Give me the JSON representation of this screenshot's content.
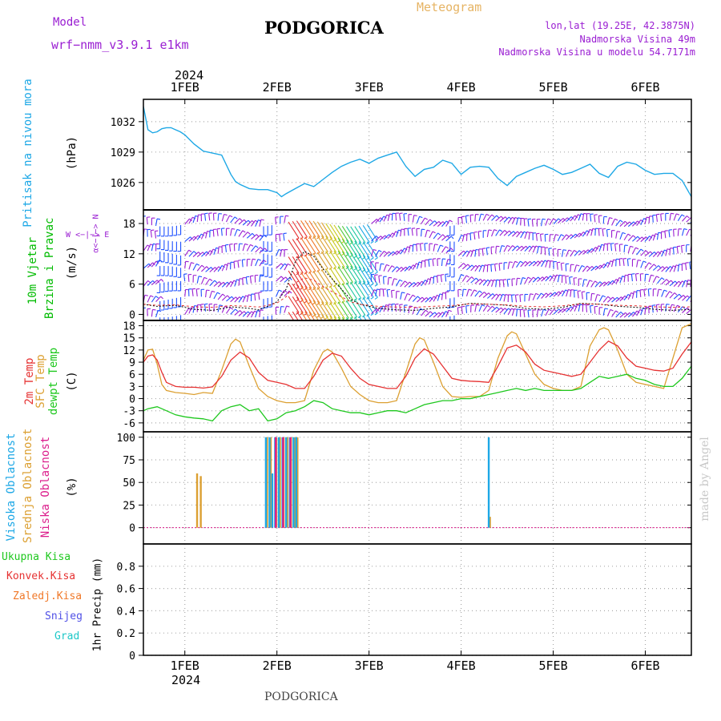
{
  "header": {
    "model_label": "Model",
    "model_value": "wrf−nmm_v3.9.1 e1km",
    "title": "PODGORICA",
    "meteogram_label": "Meteogram",
    "coords": "lon,lat (19.25E, 42.3875N)",
    "elev": "Nadmorska Visina 49m",
    "model_elev": "Nadmorska Visina u modelu 54.7171m",
    "year_top": "2024",
    "year_bottom": "2024",
    "footer": "PODGORICA",
    "watermark": "made by Angel"
  },
  "colors": {
    "pressure": "#1ea8e6",
    "wind_label": "#00bb00",
    "wind_purple": "#9a1ed2",
    "wind_blue": "#1e50ff",
    "temp2m": "#e63232",
    "sfc": "#dca032",
    "dew": "#1ec81e",
    "high": "#1ea8e6",
    "mid": "#dca032",
    "low": "#dc1e8c",
    "precip_total": "#1ec81e",
    "precip_conv": "#e63232",
    "precip_frz": "#f07828",
    "precip_snow": "#5050e6",
    "precip_grad": "#1ec8c8"
  },
  "panels": {
    "pressure": {
      "label": "Pritisak na nivou mora",
      "unit": "(hPa)",
      "ticks": [
        1026,
        1029,
        1032
      ]
    },
    "wind": {
      "label1": "10m Vjetar",
      "label2": "Brzina i Pravac",
      "unit": "(m/s)",
      "ticks": [
        0,
        6,
        12,
        18
      ],
      "compass": {
        "n": "N",
        "s": "S",
        "w": "W",
        "e": "E",
        "arrow": "<−|−>",
        "alpha": "α<−|−>"
      }
    },
    "temp": {
      "label1": "2m Temp",
      "label2": "SFC Temp",
      "label3": "dewpt Temp",
      "unit": "(C)",
      "ticks": [
        -6,
        -3,
        0,
        3,
        6,
        9,
        12,
        15,
        18
      ]
    },
    "cloud": {
      "label1": "Visoka Oblacnost",
      "label2": "Srednja Oblacnost",
      "label3": "Niska Oblacnost",
      "unit": "(%)",
      "ticks": [
        0,
        25,
        50,
        75,
        100
      ]
    },
    "precip": {
      "label1": "Ukupna Kisa",
      "label2": "Konvek.Kisa",
      "label3": "Zaledj.Kisa",
      "label4": "Snijeg",
      "label5": "Grad",
      "unit": "1hr Precip (mm)",
      "ticks": [
        0,
        0.2,
        0.4,
        0.6,
        0.8
      ]
    }
  },
  "chart_data": {
    "type": "line",
    "x_day_labels": [
      "1FEB",
      "2FEB",
      "3FEB",
      "4FEB",
      "5FEB",
      "6FEB"
    ],
    "x_range_days": [
      0.55,
      6.5
    ],
    "pressure_hPa": {
      "x": [
        0.55,
        0.6,
        0.65,
        0.7,
        0.75,
        0.8,
        0.85,
        0.9,
        0.95,
        1.0,
        1.1,
        1.2,
        1.3,
        1.4,
        1.5,
        1.55,
        1.6,
        1.7,
        1.8,
        1.9,
        2.0,
        2.05,
        2.1,
        2.2,
        2.3,
        2.4,
        2.5,
        2.6,
        2.7,
        2.8,
        2.9,
        3.0,
        3.1,
        3.2,
        3.3,
        3.4,
        3.5,
        3.6,
        3.7,
        3.8,
        3.9,
        4.0,
        4.1,
        4.2,
        4.3,
        4.4,
        4.5,
        4.6,
        4.7,
        4.8,
        4.9,
        5.0,
        5.1,
        5.2,
        5.3,
        5.4,
        5.5,
        5.6,
        5.7,
        5.8,
        5.9,
        6.0,
        6.1,
        6.2,
        6.3,
        6.4,
        6.5
      ],
      "y": [
        1033.5,
        1031.2,
        1030.9,
        1031.0,
        1031.3,
        1031.4,
        1031.4,
        1031.2,
        1031.0,
        1030.7,
        1029.8,
        1029.1,
        1028.9,
        1028.7,
        1026.8,
        1026.1,
        1025.8,
        1025.4,
        1025.3,
        1025.3,
        1025.0,
        1024.6,
        1024.9,
        1025.4,
        1025.9,
        1025.6,
        1026.3,
        1027.0,
        1027.6,
        1028.0,
        1028.3,
        1027.9,
        1028.4,
        1028.7,
        1029.0,
        1027.6,
        1026.6,
        1027.3,
        1027.5,
        1028.2,
        1027.9,
        1026.8,
        1027.5,
        1027.6,
        1027.5,
        1026.4,
        1025.7,
        1026.6,
        1027.0,
        1027.4,
        1027.7,
        1027.3,
        1026.8,
        1027.0,
        1027.4,
        1027.8,
        1026.9,
        1026.5,
        1027.6,
        1028.0,
        1027.8,
        1027.2,
        1026.8,
        1026.9,
        1026.9,
        1026.2,
        1024.6
      ]
    },
    "wind_ms": {
      "x": [
        0.55,
        0.7,
        0.9,
        1.1,
        1.3,
        1.5,
        1.7,
        1.8,
        1.9,
        2.0,
        2.1,
        2.2,
        2.3,
        2.4,
        2.5,
        2.6,
        2.7,
        2.8,
        2.9,
        3.0,
        3.1,
        3.3,
        3.5,
        3.7,
        3.9,
        4.1,
        4.3,
        4.5,
        4.7,
        4.9,
        5.1,
        5.3,
        5.5,
        5.7,
        5.9,
        6.1,
        6.3,
        6.5
      ],
      "speed": [
        2.0,
        1.6,
        1.8,
        1.0,
        0.8,
        1.5,
        1.2,
        0.9,
        1.6,
        2.5,
        5.0,
        10.5,
        12.5,
        11.5,
        9.0,
        7.0,
        5.0,
        3.0,
        2.0,
        1.6,
        1.2,
        0.9,
        0.8,
        1.2,
        1.5,
        2.2,
        2.0,
        1.8,
        1.2,
        1.0,
        1.4,
        2.2,
        2.0,
        1.6,
        1.4,
        1.0,
        0.8,
        1.0
      ]
    },
    "temp_2m_C": {
      "x": [
        0.55,
        0.6,
        0.65,
        0.7,
        0.75,
        0.8,
        0.9,
        1.0,
        1.1,
        1.2,
        1.3,
        1.4,
        1.5,
        1.6,
        1.7,
        1.8,
        1.9,
        2.0,
        2.1,
        2.2,
        2.3,
        2.4,
        2.5,
        2.6,
        2.7,
        2.8,
        2.9,
        3.0,
        3.1,
        3.2,
        3.3,
        3.4,
        3.5,
        3.6,
        3.7,
        3.8,
        3.9,
        4.0,
        4.1,
        4.2,
        4.3,
        4.4,
        4.5,
        4.6,
        4.7,
        4.8,
        4.9,
        5.0,
        5.1,
        5.2,
        5.3,
        5.4,
        5.5,
        5.6,
        5.7,
        5.8,
        5.9,
        6.0,
        6.1,
        6.2,
        6.3,
        6.4,
        6.5
      ],
      "y": [
        9.0,
        10.5,
        10.8,
        9.5,
        6.5,
        4.0,
        3.0,
        2.8,
        2.8,
        2.6,
        2.9,
        5.5,
        9.5,
        11.5,
        10.0,
        6.5,
        4.5,
        4.0,
        3.5,
        2.5,
        2.5,
        5.5,
        9.5,
        11.2,
        10.5,
        7.5,
        5.0,
        3.5,
        3.0,
        2.5,
        2.5,
        5.5,
        10.0,
        12.3,
        11.0,
        8.0,
        5.0,
        4.5,
        4.3,
        4.2,
        4.0,
        8.0,
        12.5,
        13.2,
        11.5,
        8.5,
        7.0,
        6.5,
        6.0,
        5.5,
        6.0,
        9.0,
        12.0,
        14.2,
        13.0,
        10.0,
        8.0,
        7.5,
        7.0,
        6.8,
        7.5,
        11.0,
        14.0
      ]
    },
    "temp_sfc_C": {
      "x": [
        0.55,
        0.6,
        0.65,
        0.7,
        0.75,
        0.8,
        0.9,
        1.0,
        1.1,
        1.2,
        1.3,
        1.4,
        1.5,
        1.55,
        1.6,
        1.7,
        1.8,
        1.9,
        2.0,
        2.1,
        2.2,
        2.3,
        2.4,
        2.5,
        2.55,
        2.6,
        2.7,
        2.8,
        2.9,
        3.0,
        3.1,
        3.2,
        3.3,
        3.4,
        3.5,
        3.55,
        3.6,
        3.7,
        3.8,
        3.9,
        4.0,
        4.1,
        4.2,
        4.3,
        4.4,
        4.5,
        4.55,
        4.6,
        4.7,
        4.8,
        4.9,
        5.0,
        5.1,
        5.2,
        5.3,
        5.4,
        5.5,
        5.55,
        5.6,
        5.7,
        5.8,
        5.9,
        6.0,
        6.1,
        6.2,
        6.3,
        6.4,
        6.5
      ],
      "y": [
        9.5,
        12.0,
        12.2,
        8.5,
        3.5,
        2.0,
        1.5,
        1.3,
        1.0,
        1.5,
        1.3,
        7.0,
        13.5,
        14.7,
        14.0,
        8.0,
        2.5,
        0.5,
        -0.5,
        -1.0,
        -1.0,
        -0.5,
        7.0,
        11.5,
        12.2,
        11.5,
        7.5,
        3.0,
        1.0,
        -0.5,
        -1.0,
        -1.0,
        -0.5,
        6.5,
        13.5,
        15.0,
        14.5,
        9.0,
        3.0,
        0.5,
        0.3,
        0.5,
        0.5,
        2.0,
        10.0,
        15.5,
        16.5,
        16.0,
        11.0,
        6.0,
        3.5,
        2.5,
        2.0,
        2.0,
        3.0,
        13.0,
        17.0,
        17.5,
        17.0,
        12.0,
        6.0,
        4.0,
        3.5,
        3.0,
        2.5,
        10.0,
        17.5,
        18.5
      ]
    },
    "temp_dewpt_C": {
      "x": [
        0.55,
        0.6,
        0.7,
        0.8,
        0.9,
        1.0,
        1.1,
        1.2,
        1.3,
        1.4,
        1.5,
        1.6,
        1.7,
        1.8,
        1.9,
        2.0,
        2.1,
        2.2,
        2.3,
        2.4,
        2.5,
        2.6,
        2.7,
        2.8,
        2.9,
        3.0,
        3.1,
        3.2,
        3.3,
        3.4,
        3.5,
        3.6,
        3.7,
        3.8,
        3.9,
        4.0,
        4.1,
        4.2,
        4.3,
        4.4,
        4.5,
        4.6,
        4.7,
        4.8,
        4.9,
        5.0,
        5.1,
        5.2,
        5.3,
        5.4,
        5.5,
        5.6,
        5.7,
        5.8,
        5.9,
        6.0,
        6.1,
        6.2,
        6.3,
        6.4,
        6.5
      ],
      "y": [
        -3.0,
        -2.5,
        -2.0,
        -3.0,
        -4.0,
        -4.5,
        -4.8,
        -5.0,
        -5.5,
        -3.0,
        -2.0,
        -1.5,
        -3.0,
        -2.5,
        -5.5,
        -5.0,
        -3.5,
        -3.0,
        -2.0,
        -0.5,
        -1.0,
        -2.5,
        -3.0,
        -3.5,
        -3.5,
        -4.0,
        -3.5,
        -3.0,
        -3.0,
        -3.5,
        -2.5,
        -1.5,
        -1.0,
        -0.5,
        -0.5,
        0.0,
        0.0,
        0.5,
        1.0,
        1.5,
        2.0,
        2.5,
        2.0,
        2.5,
        2.0,
        2.0,
        2.0,
        2.0,
        2.5,
        4.0,
        5.5,
        5.0,
        5.5,
        6.0,
        5.0,
        4.5,
        3.5,
        3.0,
        3.0,
        5.0,
        8.0
      ]
    },
    "cloud_pct": {
      "bars_high": [
        [
          1.88,
          100
        ],
        [
          1.92,
          100
        ],
        [
          1.95,
          60
        ],
        [
          1.98,
          100
        ],
        [
          2.02,
          100
        ],
        [
          2.06,
          100
        ],
        [
          2.1,
          100
        ],
        [
          2.14,
          100
        ],
        [
          2.18,
          100
        ],
        [
          2.21,
          100
        ],
        [
          4.3,
          100
        ]
      ],
      "bars_mid": [
        [
          1.12,
          60
        ],
        [
          1.16,
          57
        ],
        [
          1.88,
          100
        ],
        [
          1.92,
          100
        ],
        [
          1.98,
          100
        ],
        [
          2.02,
          100
        ],
        [
          2.06,
          100
        ],
        [
          2.1,
          100
        ],
        [
          2.14,
          100
        ],
        [
          2.18,
          100
        ],
        [
          2.21,
          100
        ],
        [
          4.3,
          12
        ]
      ],
      "bars_low": [
        [
          2.0,
          100
        ],
        [
          2.08,
          100
        ],
        [
          2.16,
          100
        ]
      ]
    },
    "precip_mm": {
      "total": [],
      "convective": [],
      "freezing": [],
      "snow": [],
      "graupel": []
    }
  }
}
